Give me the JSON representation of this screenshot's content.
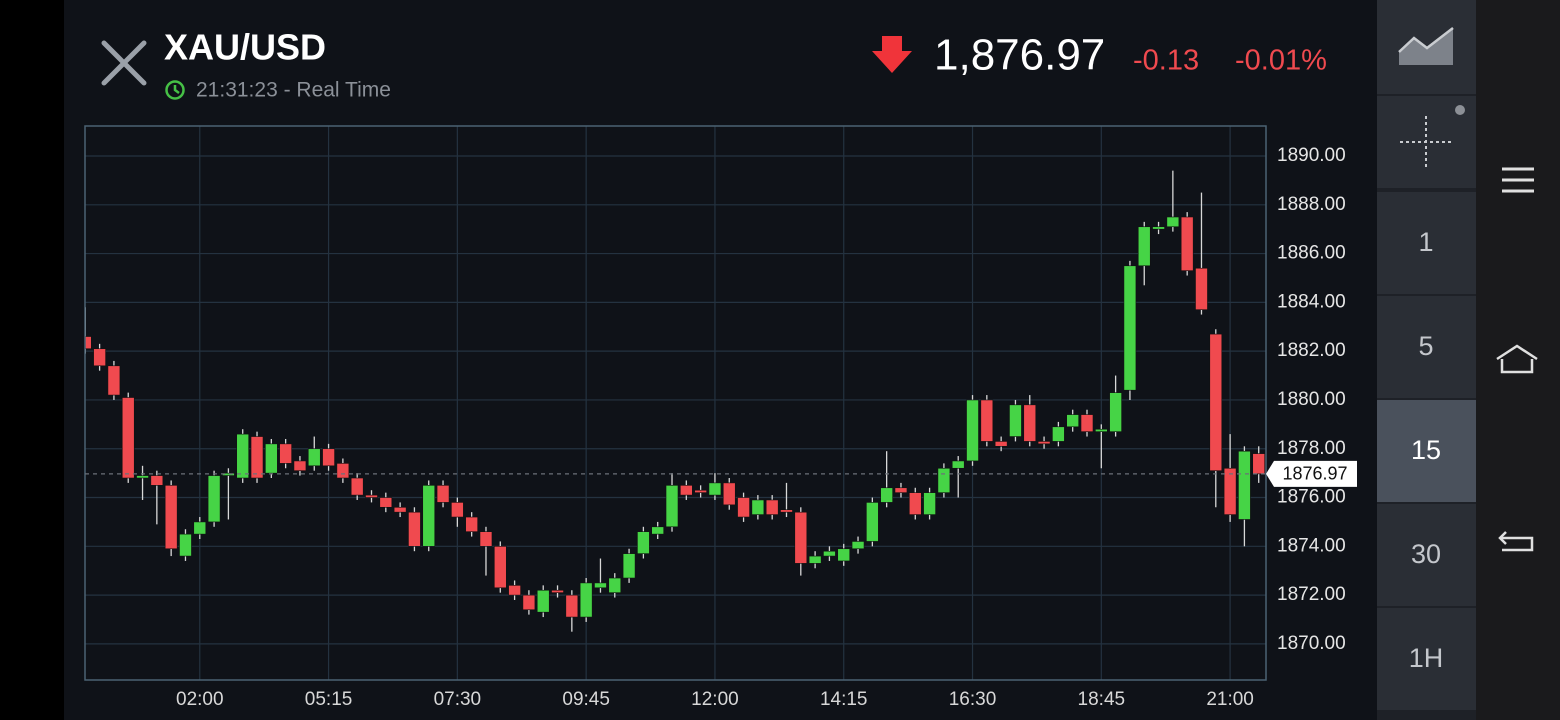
{
  "header": {
    "title": "XAU/USD",
    "time": "21:31:23 - Real Time",
    "price": "1,876.97",
    "change": "-0.13",
    "change_pct": "-0.01%"
  },
  "sidebar": {
    "intervals": [
      "1",
      "5",
      "15",
      "30",
      "1H"
    ]
  },
  "chart_data": {
    "type": "candlestick",
    "categories": [
      null,
      null,
      null,
      null,
      null,
      null,
      null,
      null,
      "02:00",
      null,
      null,
      null,
      null,
      null,
      null,
      null,
      null,
      "05:15",
      null,
      null,
      null,
      null,
      null,
      null,
      null,
      null,
      "07:30",
      null,
      null,
      null,
      null,
      null,
      null,
      null,
      null,
      "09:45",
      null,
      null,
      null,
      null,
      null,
      null,
      null,
      null,
      "12:00",
      null,
      null,
      null,
      null,
      null,
      null,
      null,
      null,
      "14:15",
      null,
      null,
      null,
      null,
      null,
      null,
      null,
      null,
      "16:30",
      null,
      null,
      null,
      null,
      null,
      null,
      null,
      null,
      "18:45",
      null,
      null,
      null,
      null,
      null,
      null,
      null,
      null,
      "21:00",
      null,
      null
    ],
    "open": [
      1882.6,
      1882.1,
      1881.4,
      1880.1,
      1876.8,
      1876.9,
      1876.5,
      1873.6,
      1874.5,
      1875.0,
      1876.9,
      1876.8,
      1878.5,
      1877.0,
      1878.2,
      1877.5,
      1877.3,
      1878.0,
      1877.4,
      1876.8,
      1876.1,
      1876.0,
      1875.6,
      1875.4,
      1874.0,
      1876.5,
      1875.8,
      1875.2,
      1874.6,
      1874.0,
      1872.4,
      1872.0,
      1871.3,
      1872.2,
      1872.0,
      1871.1,
      1872.3,
      1872.1,
      1872.7,
      1873.7,
      1874.5,
      1874.8,
      1876.5,
      1876.3,
      1876.1,
      1876.6,
      1876.0,
      1875.3,
      1875.9,
      1875.5,
      1875.4,
      1873.3,
      1873.6,
      1873.4,
      1873.9,
      1874.2,
      1875.8,
      1876.4,
      1876.2,
      1875.3,
      1876.2,
      1877.2,
      1877.5,
      1880.0,
      1878.3,
      1878.5,
      1879.8,
      1878.3,
      1878.3,
      1878.9,
      1879.4,
      1878.7,
      1878.7,
      1880.4,
      1885.5,
      1887.0,
      1887.1,
      1887.5,
      1885.4,
      1882.7,
      1877.2,
      1875.1,
      1877.8
    ],
    "high": [
      1883.8,
      1882.3,
      1881.6,
      1880.3,
      1877.3,
      1877.1,
      1876.7,
      1874.7,
      1875.2,
      1877.1,
      1877.2,
      1878.8,
      1878.7,
      1878.4,
      1878.4,
      1877.7,
      1878.5,
      1878.2,
      1877.6,
      1877.0,
      1876.3,
      1876.2,
      1875.8,
      1875.6,
      1876.7,
      1876.7,
      1876.0,
      1875.4,
      1874.8,
      1874.2,
      1872.6,
      1872.2,
      1872.4,
      1872.4,
      1872.2,
      1872.7,
      1873.5,
      1872.9,
      1873.9,
      1874.8,
      1875.0,
      1877.0,
      1876.7,
      1876.5,
      1877.0,
      1876.8,
      1876.2,
      1876.1,
      1876.1,
      1876.6,
      1875.6,
      1873.8,
      1874.0,
      1874.1,
      1874.4,
      1876.0,
      1877.9,
      1876.6,
      1876.4,
      1876.4,
      1877.4,
      1877.7,
      1880.2,
      1880.2,
      1878.5,
      1880.0,
      1880.2,
      1878.5,
      1879.1,
      1879.6,
      1879.6,
      1879.0,
      1881.0,
      1885.7,
      1887.3,
      1887.3,
      1889.4,
      1887.7,
      1888.5,
      1882.9,
      1878.6,
      1878.1,
      1878.1
    ],
    "low": [
      1881.9,
      1881.2,
      1880.0,
      1876.6,
      1875.9,
      1874.9,
      1873.6,
      1873.4,
      1874.3,
      1874.8,
      1875.1,
      1876.6,
      1876.6,
      1876.8,
      1877.2,
      1876.9,
      1877.1,
      1877.1,
      1876.6,
      1875.9,
      1875.8,
      1875.4,
      1875.2,
      1873.8,
      1873.8,
      1875.6,
      1874.8,
      1874.4,
      1872.8,
      1872.1,
      1871.8,
      1871.2,
      1871.1,
      1871.9,
      1870.5,
      1870.9,
      1872.1,
      1871.9,
      1872.5,
      1873.5,
      1874.3,
      1874.6,
      1875.9,
      1876.0,
      1875.9,
      1875.5,
      1875.0,
      1875.1,
      1875.1,
      1875.2,
      1872.8,
      1873.1,
      1873.4,
      1873.2,
      1873.7,
      1874.0,
      1875.6,
      1876.0,
      1875.1,
      1875.1,
      1876.0,
      1876.0,
      1877.3,
      1878.1,
      1877.9,
      1878.3,
      1878.1,
      1878.0,
      1878.1,
      1878.7,
      1878.5,
      1877.2,
      1878.5,
      1880.0,
      1884.7,
      1886.8,
      1886.9,
      1885.1,
      1883.5,
      1875.6,
      1875.0,
      1874.0,
      1876.6
    ],
    "close": [
      1882.1,
      1881.4,
      1880.2,
      1876.8,
      1876.9,
      1876.5,
      1873.9,
      1874.5,
      1875.0,
      1876.9,
      1877.0,
      1878.6,
      1876.8,
      1878.2,
      1877.4,
      1877.1,
      1878.0,
      1877.3,
      1876.8,
      1876.1,
      1876.0,
      1875.6,
      1875.4,
      1874.0,
      1876.5,
      1875.8,
      1875.2,
      1874.6,
      1874.0,
      1872.3,
      1872.0,
      1871.4,
      1872.2,
      1872.1,
      1871.1,
      1872.5,
      1872.5,
      1872.7,
      1873.7,
      1874.6,
      1874.8,
      1876.5,
      1876.1,
      1876.2,
      1876.6,
      1875.7,
      1875.2,
      1875.9,
      1875.3,
      1875.4,
      1873.3,
      1873.6,
      1873.8,
      1873.9,
      1874.2,
      1875.8,
      1876.4,
      1876.2,
      1875.3,
      1876.2,
      1877.2,
      1877.5,
      1880.0,
      1878.3,
      1878.1,
      1879.8,
      1878.3,
      1878.2,
      1878.9,
      1879.4,
      1878.7,
      1878.8,
      1880.3,
      1885.5,
      1887.1,
      1887.1,
      1887.5,
      1885.3,
      1883.7,
      1877.1,
      1875.3,
      1877.9,
      1876.97
    ],
    "up_color": "#46d446",
    "down_color": "#f04a4f",
    "ylim": [
      1868.52,
      1891.23
    ],
    "yticks": [
      {
        "value": 1870,
        "label": "1870.00"
      },
      {
        "value": 1872,
        "label": "1872.00"
      },
      {
        "value": 1874,
        "label": "1874.00"
      },
      {
        "value": 1876,
        "label": "1876.00"
      },
      {
        "value": 1878,
        "label": "1878.00"
      },
      {
        "value": 1880,
        "label": "1880.00"
      },
      {
        "value": 1882,
        "label": "1882.00"
      },
      {
        "value": 1884,
        "label": "1884.00"
      },
      {
        "value": 1886,
        "label": "1886.00"
      },
      {
        "value": 1888,
        "label": "1888.00"
      },
      {
        "value": 1890,
        "label": "1890.00"
      }
    ],
    "grid": true,
    "current_price": {
      "value": 1876.97,
      "label": "1876.97"
    }
  }
}
